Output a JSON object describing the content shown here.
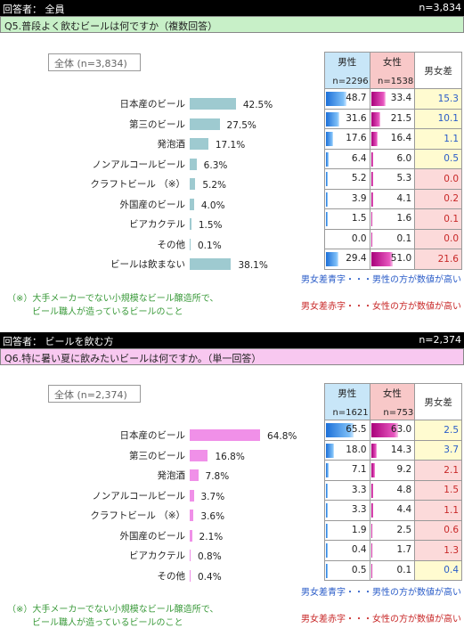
{
  "q5": {
    "respondent_label": "回答者： 全員",
    "respondent_n": "n=3,834",
    "question": "Q5.普段よく飲むビールは何ですか（複数回答）",
    "total_label": "全体 (n=3,834)",
    "male_header": "男性",
    "female_header": "女性",
    "male_n": "n=2296",
    "female_n": "n=1538",
    "diff_header": "男女差",
    "legend_blue": "男女差青字・・・男性の方が数値が高い",
    "legend_red": "男女差赤字・・・女性の方が数値が高い",
    "note_line1": "（※）大手メーカーでない小規模なビール醸造所で、",
    "note_line2": "ビール職人が造っているビールのこと",
    "rows": [
      {
        "category": "日本産のビール",
        "pct_label": "42.5%",
        "male": "48.7",
        "female": "33.4",
        "diff": "15.3"
      },
      {
        "category": "第三のビール",
        "pct_label": "27.5%",
        "male": "31.6",
        "female": "21.5",
        "diff": "10.1"
      },
      {
        "category": "発泡酒",
        "pct_label": "17.1%",
        "male": "17.6",
        "female": "16.4",
        "diff": "1.1"
      },
      {
        "category": "ノンアルコールビール",
        "pct_label": "6.3%",
        "male": "6.4",
        "female": "6.0",
        "diff": "0.5"
      },
      {
        "category": "クラフトビール （※）",
        "pct_label": "5.2%",
        "male": "5.2",
        "female": "5.3",
        "diff": "0.0"
      },
      {
        "category": "外国産のビール",
        "pct_label": "4.0%",
        "male": "3.9",
        "female": "4.1",
        "diff": "0.2"
      },
      {
        "category": "ビアカクテル",
        "pct_label": "1.5%",
        "male": "1.5",
        "female": "1.6",
        "diff": "0.1"
      },
      {
        "category": "その他",
        "pct_label": "0.1%",
        "male": "0.0",
        "female": "0.1",
        "diff": "0.0"
      },
      {
        "category": "ビールは飲まない",
        "pct_label": "38.1%",
        "male": "29.4",
        "female": "51.0",
        "diff": "21.6"
      }
    ]
  },
  "q6": {
    "respondent_label": "回答者： ビールを飲む方",
    "respondent_n": "n=2,374",
    "question": "Q6.特に暑い夏に飲みたいビールは何ですか。（単一回答）",
    "total_label": "全体 (n=2,374)",
    "male_header": "男性",
    "female_header": "女性",
    "male_n": "n=1621",
    "female_n": "n=753",
    "diff_header": "男女差",
    "legend_blue": "男女差青字・・・男性の方が数値が高い",
    "legend_red": "男女差赤字・・・女性の方が数値が高い",
    "note_line1": "（※）大手メーカーでない小規模なビール醸造所で、",
    "note_line2": "ビール職人が造っているビールのこと",
    "rows": [
      {
        "category": "日本産のビール",
        "pct_label": "64.8%",
        "male": "65.5",
        "female": "63.0",
        "diff": "2.5"
      },
      {
        "category": "第三のビール",
        "pct_label": "16.8%",
        "male": "18.0",
        "female": "14.3",
        "diff": "3.7"
      },
      {
        "category": "発泡酒",
        "pct_label": "7.8%",
        "male": "7.1",
        "female": "9.2",
        "diff": "2.1"
      },
      {
        "category": "ノンアルコールビール",
        "pct_label": "3.7%",
        "male": "3.3",
        "female": "4.8",
        "diff": "1.5"
      },
      {
        "category": "クラフトビール （※）",
        "pct_label": "3.6%",
        "male": "3.3",
        "female": "4.4",
        "diff": "1.1"
      },
      {
        "category": "外国産のビール",
        "pct_label": "2.1%",
        "male": "1.9",
        "female": "2.5",
        "diff": "0.6"
      },
      {
        "category": "ビアカクテル",
        "pct_label": "0.8%",
        "male": "0.4",
        "female": "1.7",
        "diff": "1.3"
      },
      {
        "category": "その他",
        "pct_label": "0.4%",
        "male": "0.5",
        "female": "0.1",
        "diff": "0.4"
      }
    ]
  },
  "chart_data": [
    {
      "type": "bar",
      "title": "Q5.普段よく飲むビールは何ですか（複数回答）",
      "categories": [
        "日本産のビール",
        "第三のビール",
        "発泡酒",
        "ノンアルコールビール",
        "クラフトビール （※）",
        "外国産のビール",
        "ビアカクテル",
        "その他",
        "ビールは飲まない"
      ],
      "series": [
        {
          "name": "全体 (n=3,834)",
          "values": [
            42.5,
            27.5,
            17.1,
            6.3,
            5.2,
            4.0,
            1.5,
            0.1,
            38.1
          ]
        },
        {
          "name": "男性",
          "values": [
            48.7,
            31.6,
            17.6,
            6.4,
            5.2,
            3.9,
            1.5,
            0.0,
            29.4
          ]
        },
        {
          "name": "女性",
          "values": [
            33.4,
            21.5,
            16.4,
            6.0,
            5.3,
            4.1,
            1.6,
            0.1,
            51.0
          ]
        },
        {
          "name": "男女差",
          "values": [
            15.3,
            10.1,
            1.1,
            0.5,
            0.0,
            0.2,
            0.1,
            0.0,
            21.6
          ]
        }
      ],
      "diff_higher": [
        "male",
        "male",
        "male",
        "male",
        "female",
        "female",
        "female",
        "female",
        "female"
      ],
      "colors": {
        "total_bar": "#9ecad0",
        "male_bar": "#1c6fd8",
        "female_bar": "#a8007a",
        "male_higher": "#2a5cc8",
        "female_higher": "#c82828"
      }
    },
    {
      "type": "bar",
      "title": "Q6.特に暑い夏に飲みたいビールは何ですか。（単一回答）",
      "categories": [
        "日本産のビール",
        "第三のビール",
        "発泡酒",
        "ノンアルコールビール",
        "クラフトビール （※）",
        "外国産のビール",
        "ビアカクテル",
        "その他"
      ],
      "series": [
        {
          "name": "全体 (n=2,374)",
          "values": [
            64.8,
            16.8,
            7.8,
            3.7,
            3.6,
            2.1,
            0.8,
            0.4
          ]
        },
        {
          "name": "男性",
          "values": [
            65.5,
            18.0,
            7.1,
            3.3,
            3.3,
            1.9,
            0.4,
            0.5
          ]
        },
        {
          "name": "女性",
          "values": [
            63.0,
            14.3,
            9.2,
            4.8,
            4.4,
            2.5,
            1.7,
            0.1
          ]
        },
        {
          "name": "男女差",
          "values": [
            2.5,
            3.7,
            2.1,
            1.5,
            1.1,
            0.6,
            1.3,
            0.4
          ]
        }
      ],
      "diff_higher": [
        "male",
        "male",
        "female",
        "female",
        "female",
        "female",
        "female",
        "male"
      ],
      "colors": {
        "total_bar": "#f090e8",
        "male_bar": "#1c6fd8",
        "female_bar": "#a8007a",
        "male_higher": "#2a5cc8",
        "female_higher": "#c82828"
      }
    }
  ]
}
